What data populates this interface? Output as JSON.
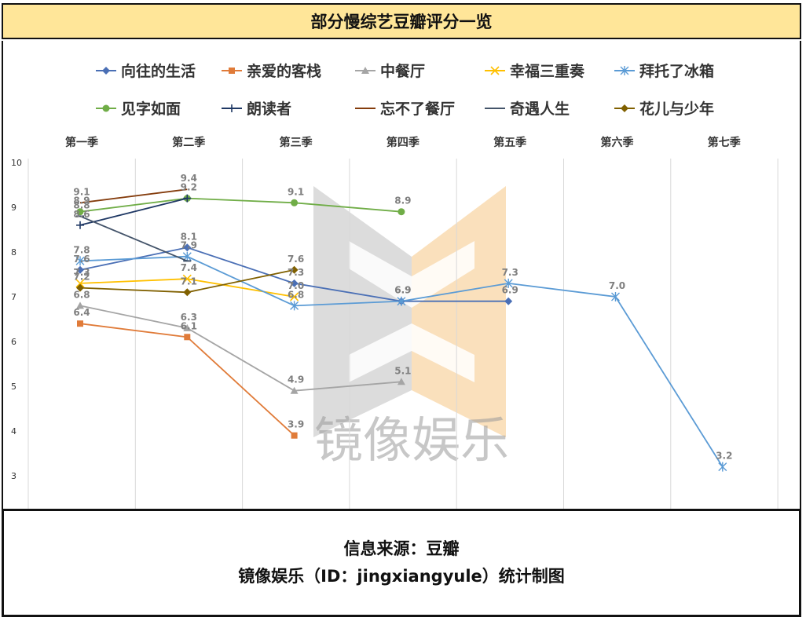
{
  "header": {
    "title": "部分慢综艺豆瓣评分一览"
  },
  "footer": {
    "line1": "信息来源：豆瓣",
    "line2": "镜像娱乐（ID：jingxiangyule）统计制图"
  },
  "watermark": {
    "text": "镜像娱乐"
  },
  "chart_data": {
    "type": "line",
    "categories": [
      "第一季",
      "第二季",
      "第三季",
      "第四季",
      "第五季",
      "第六季",
      "第七季"
    ],
    "ylim": [
      3,
      10
    ],
    "yticks": [
      3,
      4,
      5,
      6,
      7,
      8,
      9,
      10
    ],
    "grid": "vertical",
    "legend_position": "top",
    "series": [
      {
        "name": "向往的生活",
        "color": "#4a6fb5",
        "marker": "diamond",
        "values": [
          7.6,
          8.1,
          7.3,
          6.9,
          6.9,
          null,
          null
        ],
        "labels": [
          "7.6",
          "8.1",
          "7.3",
          "6.9",
          "6.9",
          "",
          ""
        ]
      },
      {
        "name": "亲爱的客栈",
        "color": "#e07b39",
        "marker": "square",
        "values": [
          6.4,
          6.1,
          3.9,
          null,
          null,
          null,
          null
        ],
        "labels": [
          "6.4",
          "6.1",
          "3.9",
          "",
          "",
          "",
          ""
        ]
      },
      {
        "name": "中餐厅",
        "color": "#a5a5a5",
        "marker": "triangle",
        "values": [
          6.8,
          6.3,
          4.9,
          5.1,
          null,
          null,
          null
        ],
        "labels": [
          "6.8",
          "6.3",
          "4.9",
          "5.1",
          "",
          "",
          ""
        ]
      },
      {
        "name": "幸福三重奏",
        "color": "#ffc000",
        "marker": "x",
        "values": [
          7.3,
          7.4,
          7.0,
          null,
          null,
          null,
          null
        ],
        "labels": [
          "7.3",
          "7.4",
          "7.0",
          "",
          "",
          "",
          ""
        ]
      },
      {
        "name": "拜托了冰箱",
        "color": "#5b9bd5",
        "marker": "asterisk",
        "values": [
          7.8,
          7.9,
          6.8,
          6.9,
          7.3,
          7.0,
          3.2
        ],
        "labels": [
          "7.8",
          "7.9",
          "6.8",
          "6.9",
          "7.3",
          "7.0",
          "3.2"
        ]
      },
      {
        "name": "见字如面",
        "color": "#70ad47",
        "marker": "circle",
        "values": [
          8.9,
          9.2,
          9.1,
          8.9,
          null,
          null,
          null
        ],
        "labels": [
          "8.9",
          "9.2",
          "9.1",
          "8.9",
          "",
          "",
          ""
        ]
      },
      {
        "name": "朗读者",
        "color": "#1f3864",
        "marker": "plus",
        "values": [
          8.6,
          9.2,
          null,
          null,
          null,
          null,
          null
        ],
        "labels": [
          "8.6",
          "",
          "",
          "",
          "",
          "",
          ""
        ]
      },
      {
        "name": "忘不了餐厅",
        "color": "#843c0c",
        "marker": "none",
        "values": [
          9.1,
          9.4,
          null,
          null,
          null,
          null,
          null
        ],
        "labels": [
          "9.1",
          "9.4",
          "",
          "",
          "",
          "",
          ""
        ]
      },
      {
        "name": "奇遇人生",
        "color": "#44546a",
        "marker": "dash",
        "values": [
          8.8,
          7.8,
          null,
          null,
          null,
          null,
          null
        ],
        "labels": [
          "8.8",
          "",
          "",
          "",
          "",
          "",
          ""
        ]
      },
      {
        "name": "花儿与少年",
        "color": "#806000",
        "marker": "diamond",
        "values": [
          7.2,
          7.1,
          7.6,
          null,
          null,
          null,
          null
        ],
        "labels": [
          "7.2",
          "7.1",
          "7.6",
          "",
          "",
          "",
          ""
        ]
      }
    ]
  }
}
